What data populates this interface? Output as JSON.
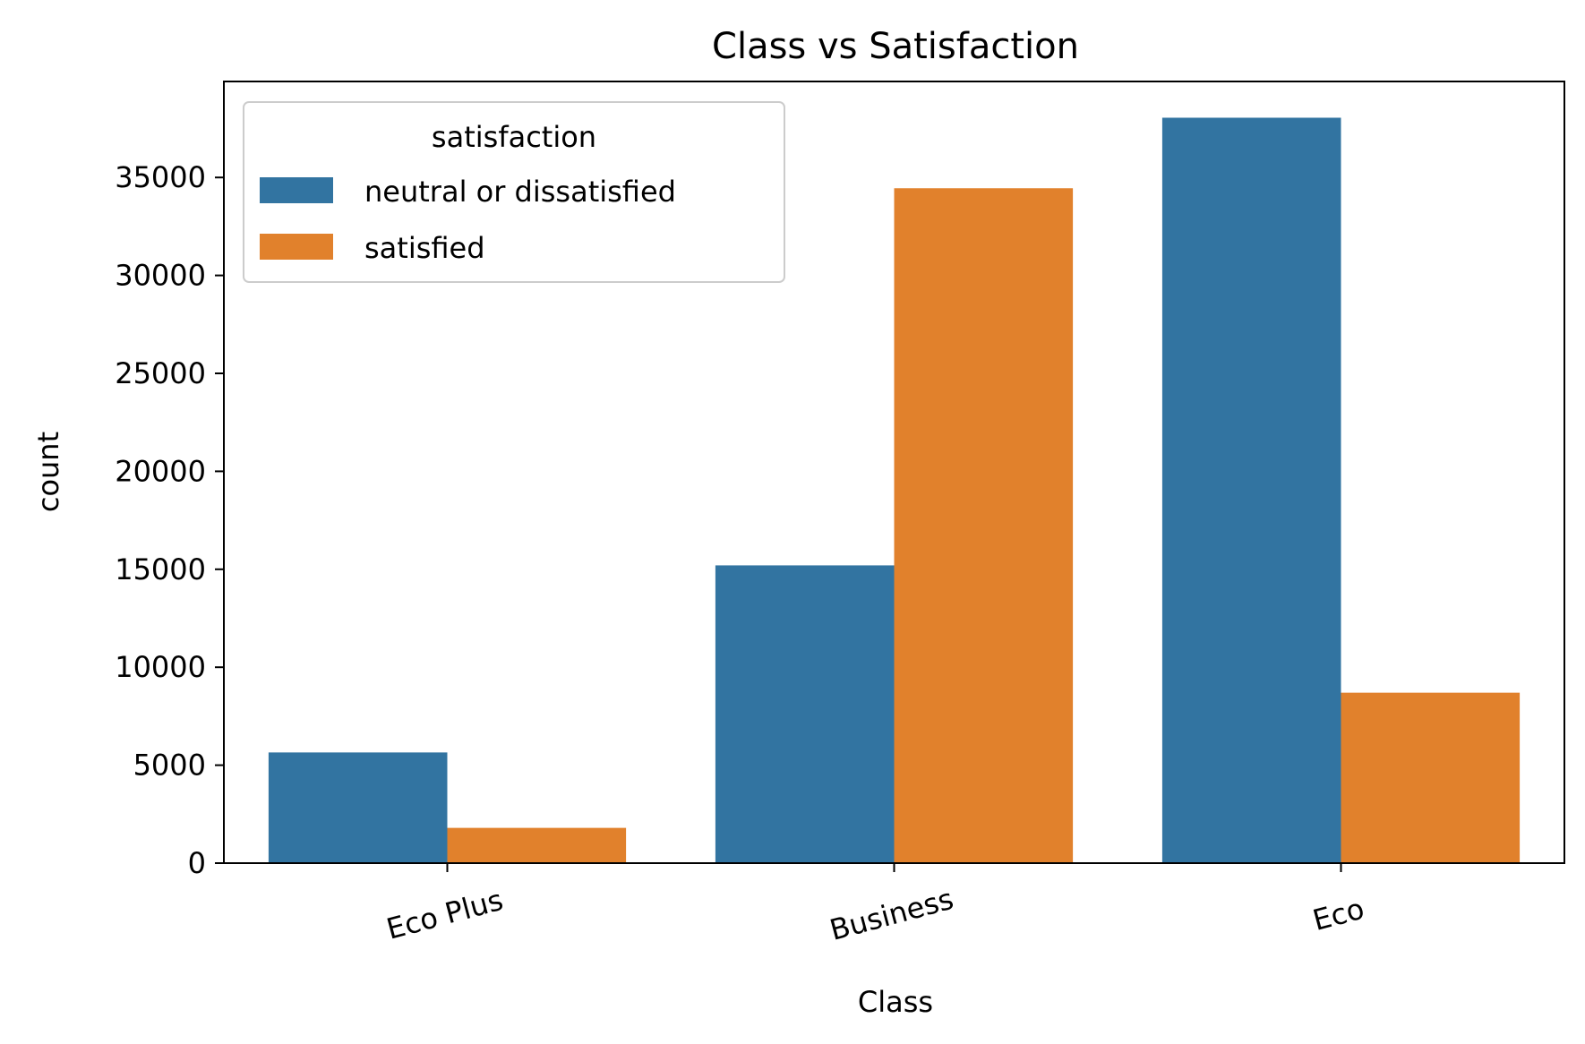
{
  "chart_data": {
    "type": "bar",
    "title": "Class vs Satisfaction",
    "xlabel": "Class",
    "ylabel": "count",
    "categories": [
      "Eco Plus",
      "Business",
      "Eco"
    ],
    "series": [
      {
        "name": "neutral or dissatisfied",
        "color": "#3274a1",
        "values": [
          5650,
          15200,
          38050
        ]
      },
      {
        "name": "satisfied",
        "color": "#e1812c",
        "values": [
          1800,
          34450,
          8700
        ]
      }
    ],
    "ylim": [
      0,
      39900
    ],
    "yticks": [
      0,
      5000,
      10000,
      15000,
      20000,
      25000,
      30000,
      35000
    ],
    "legend": {
      "title": "satisfaction",
      "placement": "upper-left"
    },
    "grid": false
  }
}
